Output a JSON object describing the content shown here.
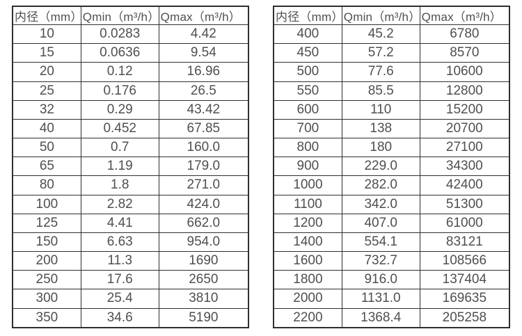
{
  "page": {
    "background": "#ffffff"
  },
  "colors": {
    "border": "#2e2e2e",
    "text": "#4f4f4f"
  },
  "tables": [
    {
      "name": "flow-spec-table-small-diameters",
      "headers": [
        "内径（mm）",
        "Qmin（m³/h）",
        "Qmax（m³/h）"
      ],
      "rows": [
        [
          "10",
          "0.0283",
          "4.42"
        ],
        [
          "15",
          "0.0636",
          "9.54"
        ],
        [
          "20",
          "0.12",
          "16.96"
        ],
        [
          "25",
          "0.176",
          "26.5"
        ],
        [
          "32",
          "0.29",
          "43.42"
        ],
        [
          "40",
          "0.452",
          "67.85"
        ],
        [
          "50",
          "0.7",
          "160.0"
        ],
        [
          "65",
          "1.19",
          "179.0"
        ],
        [
          "80",
          "1.8",
          "271.0"
        ],
        [
          "100",
          "2.82",
          "424.0"
        ],
        [
          "125",
          "4.41",
          "662.0"
        ],
        [
          "150",
          "6.63",
          "954.0"
        ],
        [
          "200",
          "11.3",
          "1690"
        ],
        [
          "250",
          "17.6",
          "2650"
        ],
        [
          "300",
          "25.4",
          "3810"
        ],
        [
          "350",
          "34.6",
          "5190"
        ]
      ]
    },
    {
      "name": "flow-spec-table-large-diameters",
      "headers": [
        "内径（mm）",
        "Qmin（m³/h）",
        "Qmax（m³/h）"
      ],
      "rows": [
        [
          "400",
          "45.2",
          "6780"
        ],
        [
          "450",
          "57.2",
          "8570"
        ],
        [
          "500",
          "77.6",
          "10600"
        ],
        [
          "550",
          "85.5",
          "12800"
        ],
        [
          "600",
          "110",
          "15200"
        ],
        [
          "700",
          "138",
          "20700"
        ],
        [
          "800",
          "180",
          "27100"
        ],
        [
          "900",
          "229.0",
          "34300"
        ],
        [
          "1000",
          "282.0",
          "42400"
        ],
        [
          "1100",
          "342.0",
          "51300"
        ],
        [
          "1200",
          "407.0",
          "61000"
        ],
        [
          "1400",
          "554.1",
          "83121"
        ],
        [
          "1600",
          "732.7",
          "108566"
        ],
        [
          "1800",
          "916.0",
          "137404"
        ],
        [
          "2000",
          "1131.0",
          "169635"
        ],
        [
          "2200",
          "1368.4",
          "205258"
        ]
      ]
    }
  ]
}
